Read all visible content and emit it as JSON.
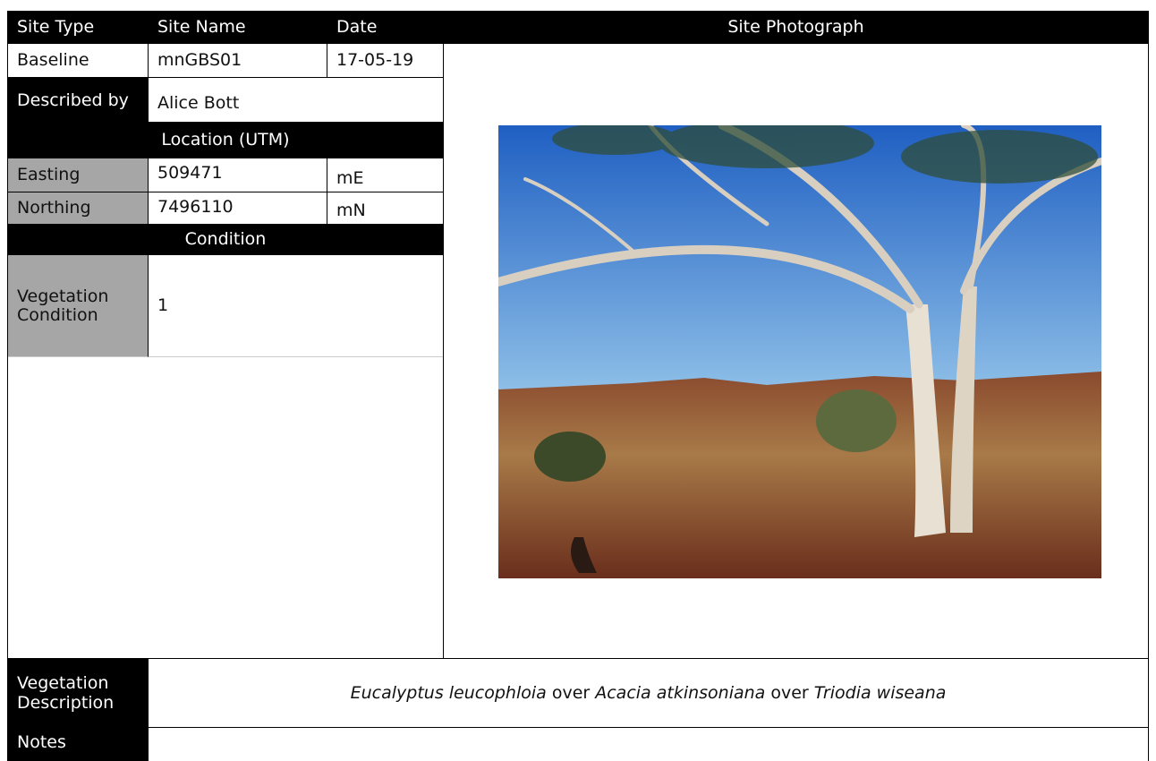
{
  "header": {
    "site_type": "Site Type",
    "site_name": "Site Name",
    "date": "Date",
    "site_photograph": "Site Photograph"
  },
  "site": {
    "type": "Baseline",
    "name": "mnGBS01",
    "date": "17-05-19"
  },
  "described_by": {
    "label": "Described by",
    "value": "Alice Bott"
  },
  "location": {
    "title": "Location (UTM)",
    "easting": {
      "label": "Easting",
      "value": "509471",
      "unit": "mE"
    },
    "northing": {
      "label": "Northing",
      "value": "7496110",
      "unit": "mN"
    }
  },
  "condition": {
    "title": "Condition",
    "label": "Vegetation Condition",
    "value": "1"
  },
  "vegetation_description": {
    "label": "Vegetation Description",
    "segments": [
      {
        "text": "Eucalyptus leucophloia",
        "italic": true
      },
      {
        "text": " over ",
        "italic": false
      },
      {
        "text": "Acacia atkinsoniana",
        "italic": true
      },
      {
        "text": " over ",
        "italic": false
      },
      {
        "text": "Triodia wiseana",
        "italic": true
      }
    ]
  },
  "notes": {
    "label": "Notes"
  }
}
